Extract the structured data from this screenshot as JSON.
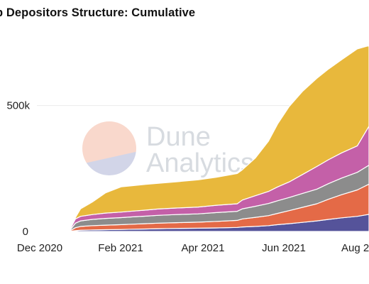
{
  "chart_data": {
    "type": "area",
    "title": "p Depositors Structure: Cumulative",
    "x_ticks": [
      "Dec 2020",
      "Feb 2021",
      "Apr 2021",
      "Jun 2021",
      "Aug 2"
    ],
    "y_ticks": [
      "0",
      "500k"
    ],
    "ylim": [
      0,
      750000
    ],
    "stacked": true,
    "grid": "horizontal",
    "x": [
      "2020-11-10",
      "2020-12-01",
      "2020-12-15",
      "2020-12-24",
      "2020-12-28",
      "2021-01-01",
      "2021-01-10",
      "2021-01-20",
      "2021-02-01",
      "2021-02-10",
      "2021-02-20",
      "2021-03-01",
      "2021-03-15",
      "2021-04-01",
      "2021-04-15",
      "2021-05-01",
      "2021-05-05",
      "2021-05-15",
      "2021-05-25",
      "2021-06-01",
      "2021-06-10",
      "2021-06-20",
      "2021-07-01",
      "2021-07-10",
      "2021-07-20",
      "2021-08-01",
      "2021-08-10"
    ],
    "series": [
      {
        "color": "#55539a",
        "values": [
          0,
          0,
          0,
          1000,
          3000,
          5000,
          6000,
          7000,
          8000,
          9000,
          10000,
          11000,
          12000,
          13000,
          14000,
          16000,
          18000,
          20000,
          23000,
          27000,
          31000,
          36000,
          42000,
          48000,
          54000,
          60000,
          68000
        ]
      },
      {
        "color": "#e46a47",
        "values": [
          0,
          0,
          0,
          2000,
          12000,
          15000,
          17000,
          18000,
          19000,
          20000,
          21000,
          22000,
          23000,
          24000,
          26000,
          28000,
          32000,
          36000,
          40000,
          45000,
          52000,
          60000,
          68000,
          80000,
          92000,
          105000,
          120000
        ]
      },
      {
        "color": "#8c8c8c",
        "values": [
          0,
          0,
          0,
          3000,
          18000,
          22000,
          25000,
          27000,
          28000,
          29000,
          30000,
          31000,
          32000,
          33000,
          35000,
          36000,
          40000,
          44000,
          48000,
          50000,
          52000,
          55000,
          58000,
          62000,
          66000,
          70000,
          75000
        ]
      },
      {
        "color": "#c460a8",
        "values": [
          0,
          0,
          0,
          4000,
          17000,
          18000,
          19000,
          21000,
          22000,
          23000,
          24000,
          25000,
          26000,
          27000,
          29000,
          30000,
          35000,
          42000,
          48000,
          55000,
          62000,
          75000,
          90000,
          95000,
          100000,
          105000,
          155000
        ]
      },
      {
        "color": "#e8b83c",
        "values": [
          0,
          0,
          0,
          0,
          5000,
          30000,
          50000,
          80000,
          100000,
          101000,
          102000,
          102000,
          104000,
          108000,
          111000,
          120000,
          120000,
          150000,
          200000,
          250000,
          300000,
          330000,
          350000,
          360000,
          370000,
          385000,
          320000
        ]
      }
    ],
    "watermark": {
      "line1": "Dune",
      "line2": "Analytics"
    }
  }
}
